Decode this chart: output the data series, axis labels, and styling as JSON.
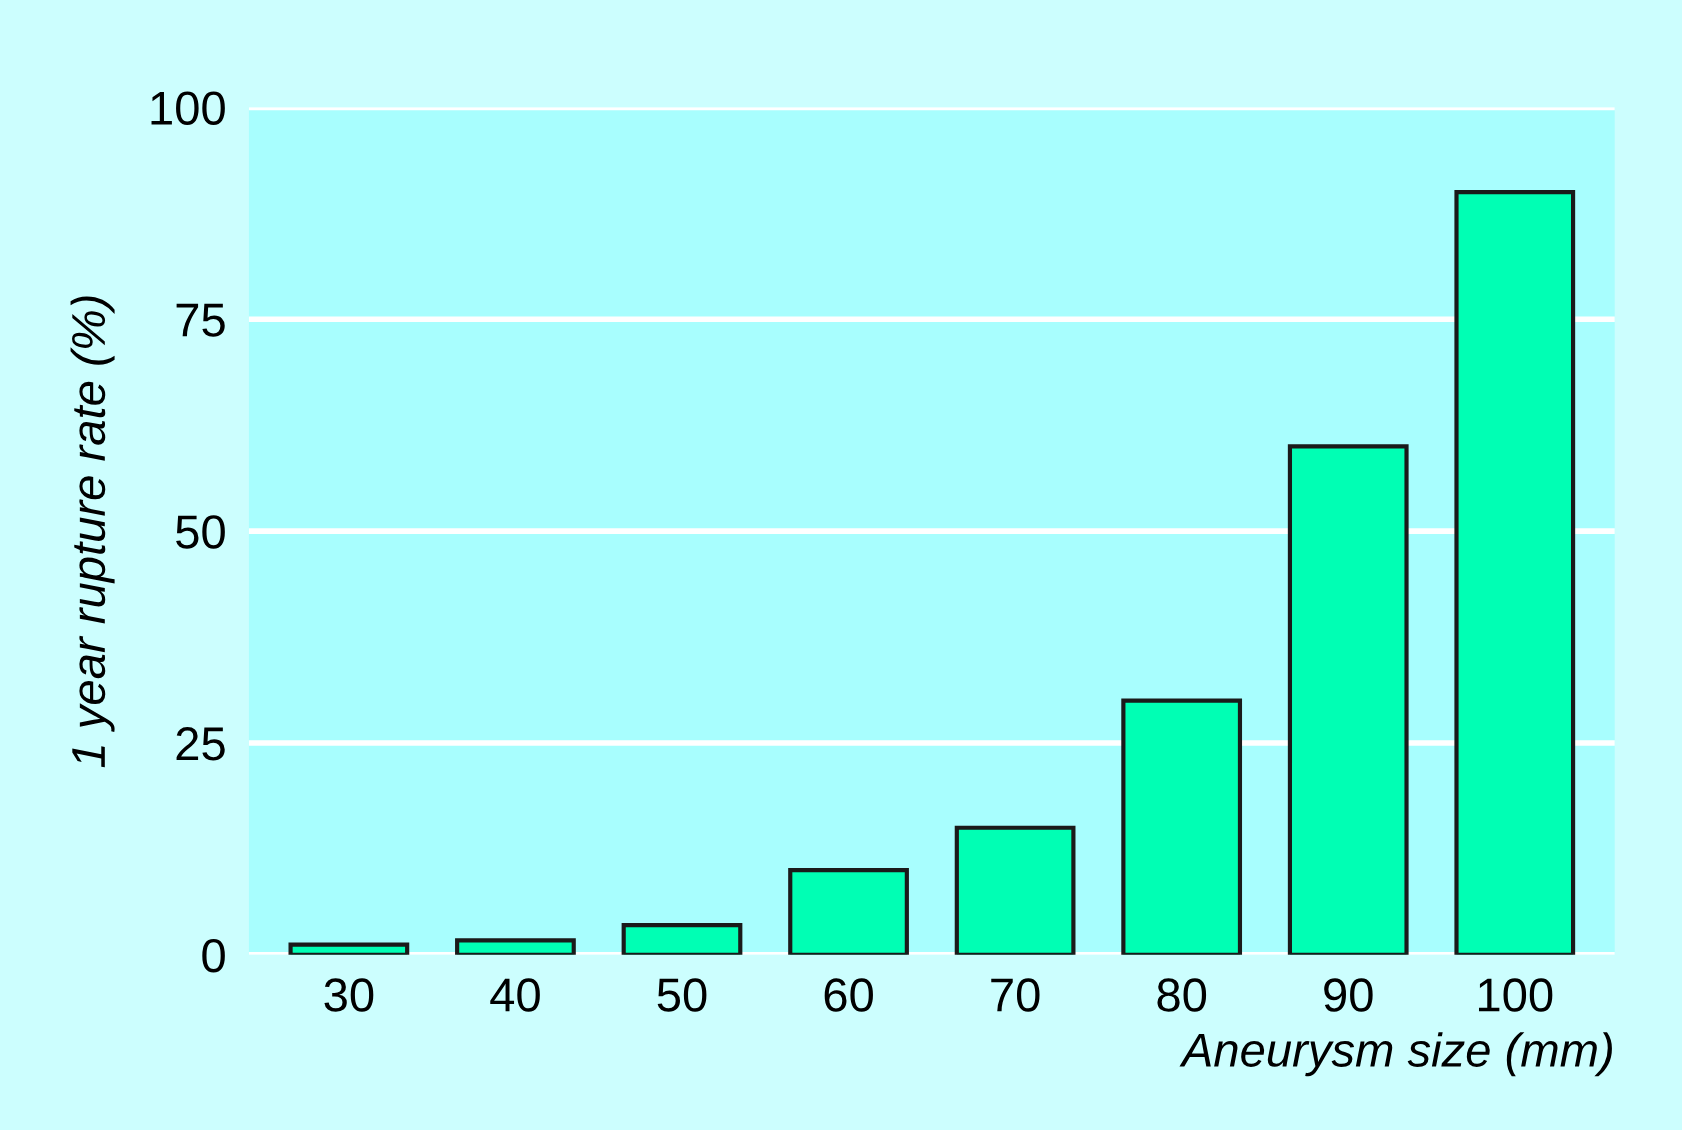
{
  "chart_data": {
    "type": "bar",
    "xlabel": "Aneurysm size (mm)",
    "ylabel": "1 year rupture rate (%)",
    "categories": [
      "30",
      "40",
      "50",
      "60",
      "70",
      "80",
      "90",
      "100"
    ],
    "values": [
      1.2,
      1.7,
      3.5,
      10,
      15,
      30,
      60,
      90
    ],
    "color": "#00ffb4",
    "ylim": [
      0,
      100
    ],
    "yticks": [
      0,
      25,
      50,
      75,
      100
    ],
    "grid": "y",
    "legend": false
  }
}
